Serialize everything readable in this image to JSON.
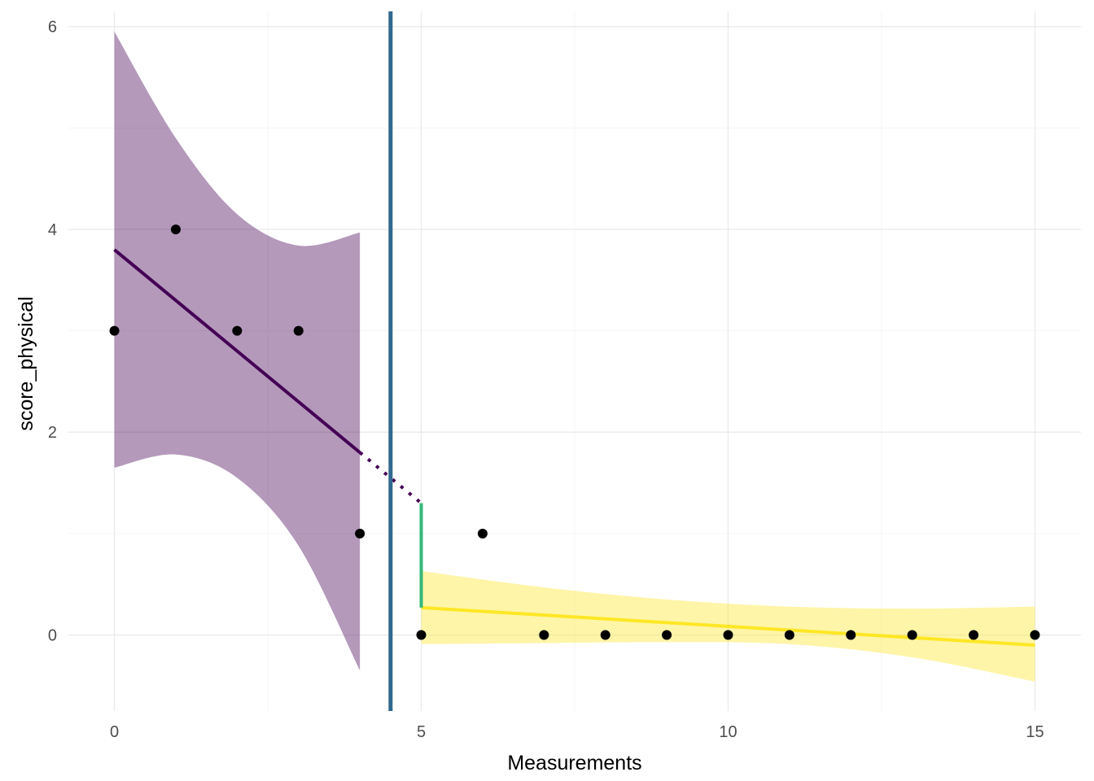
{
  "chart_data": {
    "type": "scatter",
    "title": "",
    "xlabel": "Measurements",
    "ylabel": "score_physical",
    "xlim": [
      -0.75,
      15.75
    ],
    "ylim": [
      -0.75,
      6.15
    ],
    "x_ticks": [
      0,
      5,
      10,
      15
    ],
    "y_ticks": [
      0,
      2,
      4,
      6
    ],
    "grid": true,
    "points": [
      {
        "x": 0,
        "y": 3
      },
      {
        "x": 1,
        "y": 4
      },
      {
        "x": 2,
        "y": 3
      },
      {
        "x": 3,
        "y": 3
      },
      {
        "x": 4,
        "y": 1
      },
      {
        "x": 5,
        "y": 0
      },
      {
        "x": 6,
        "y": 1
      },
      {
        "x": 7,
        "y": 0
      },
      {
        "x": 8,
        "y": 0
      },
      {
        "x": 9,
        "y": 0
      },
      {
        "x": 10,
        "y": 0
      },
      {
        "x": 11,
        "y": 0
      },
      {
        "x": 12,
        "y": 0
      },
      {
        "x": 13,
        "y": 0
      },
      {
        "x": 14,
        "y": 0
      },
      {
        "x": 15,
        "y": 0
      }
    ],
    "segments": [
      {
        "x": [
          0,
          4
        ],
        "fit": [
          3.8,
          1.8
        ],
        "ci_upper": [
          [
            0,
            5.95
          ],
          [
            1,
            4.9
          ],
          [
            2,
            4.15
          ],
          [
            3,
            3.84
          ],
          [
            4,
            3.97
          ]
        ],
        "ci_lower": [
          [
            0,
            1.65
          ],
          [
            1,
            1.78
          ],
          [
            2,
            1.55
          ],
          [
            3,
            0.88
          ],
          [
            4,
            -0.35
          ]
        ],
        "color": "#440154"
      },
      {
        "x": [
          5,
          15
        ],
        "fit": [
          0.27,
          -0.1
        ],
        "ci_upper": [
          [
            5,
            0.63
          ],
          [
            7,
            0.47
          ],
          [
            9,
            0.35
          ],
          [
            11,
            0.28
          ],
          [
            13,
            0.26
          ],
          [
            15,
            0.28
          ]
        ],
        "ci_lower": [
          [
            5,
            -0.09
          ],
          [
            7,
            -0.08
          ],
          [
            9,
            -0.07
          ],
          [
            11,
            -0.09
          ],
          [
            13,
            -0.22
          ],
          [
            15,
            -0.46
          ]
        ],
        "color": "#fde725"
      }
    ],
    "counterfactual": {
      "x": [
        4,
        5
      ],
      "y": [
        1.8,
        1.3
      ],
      "color": "#440154"
    },
    "intervention_line": {
      "x": 4.5,
      "color": "#31688e"
    },
    "effect_segment": {
      "x": 5,
      "y": [
        0.27,
        1.3
      ],
      "color": "#35b779"
    }
  }
}
